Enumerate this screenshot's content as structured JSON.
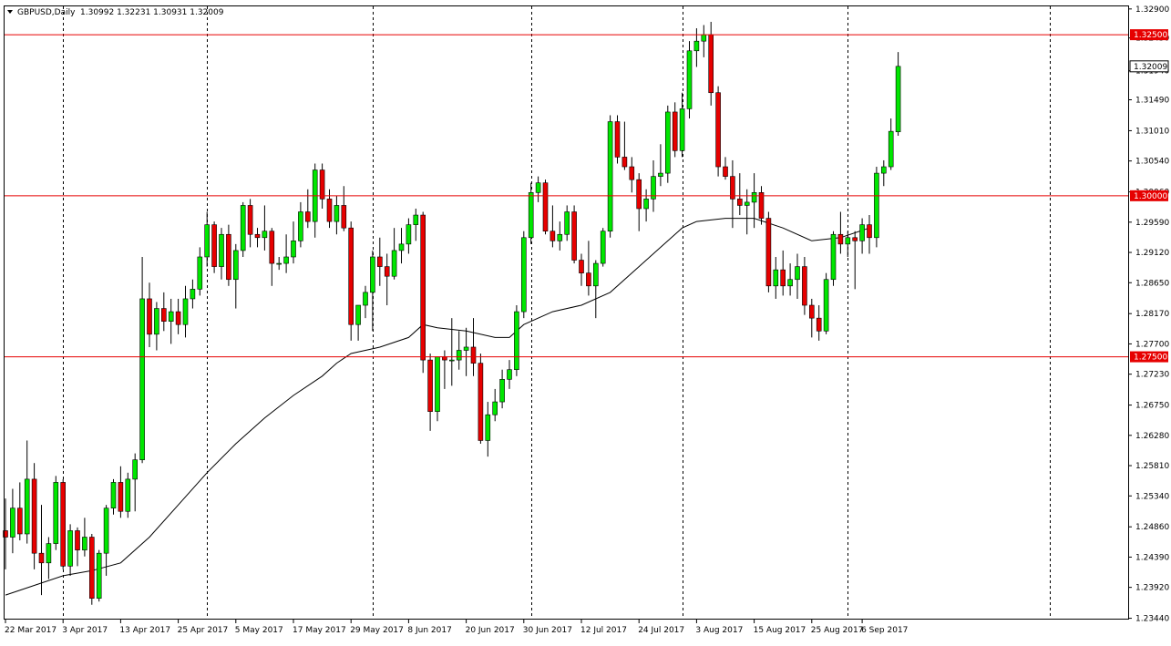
{
  "header": {
    "symbol_text": "GBPUSD,Daily",
    "ohlc_text": "1.30992 1.32231 1.30931 1.32009"
  },
  "colors": {
    "background": "#ffffff",
    "bull": "#00e600",
    "bear": "#e60000",
    "wick": "#000000",
    "level_line": "#e60000",
    "ma_line": "#000000",
    "grid_vertical": "#000000",
    "price_tag": "#e60000",
    "current_tag": "#ffffff"
  },
  "chart_data": {
    "type": "candlestick",
    "symbol": "GBPUSD",
    "timeframe": "Daily",
    "ylim": [
      1.2342,
      1.3294
    ],
    "y_ticks": [
      "1.32900",
      "1.32450",
      "1.31940",
      "1.31490",
      "1.31010",
      "1.30540",
      "1.30060",
      "1.29590",
      "1.29120",
      "1.28650",
      "1.28170",
      "1.27700",
      "1.27230",
      "1.26750",
      "1.26280",
      "1.25810",
      "1.25340",
      "1.24860",
      "1.24390",
      "1.23920",
      "1.23440"
    ],
    "x_labels": [
      {
        "bar": 0,
        "label": "22 Mar 2017"
      },
      {
        "bar": 8,
        "label": "3 Apr 2017"
      },
      {
        "bar": 16,
        "label": "13 Apr 2017"
      },
      {
        "bar": 24,
        "label": "25 Apr 2017"
      },
      {
        "bar": 32,
        "label": "5 May 2017"
      },
      {
        "bar": 40,
        "label": "17 May 2017"
      },
      {
        "bar": 48,
        "label": "29 May 2017"
      },
      {
        "bar": 56,
        "label": "8 Jun 2017"
      },
      {
        "bar": 64,
        "label": "20 Jun 2017"
      },
      {
        "bar": 72,
        "label": "30 Jun 2017"
      },
      {
        "bar": 80,
        "label": "12 Jul 2017"
      },
      {
        "bar": 88,
        "label": "24 Jul 2017"
      },
      {
        "bar": 96,
        "label": "3 Aug 2017"
      },
      {
        "bar": 104,
        "label": "15 Aug 2017"
      },
      {
        "bar": 112,
        "label": "25 Aug 2017"
      },
      {
        "bar": 119,
        "label": "6 Sep 2017"
      }
    ],
    "vertical_grid_bars": [
      8,
      28,
      51,
      73,
      94,
      117,
      145
    ],
    "levels": [
      {
        "value": 1.325,
        "label": "1.32500"
      },
      {
        "value": 1.3,
        "label": "1.30000"
      },
      {
        "value": 1.275,
        "label": "1.27500"
      }
    ],
    "current_price": {
      "value": 1.32009,
      "label": "1.32009"
    },
    "candles": [
      {
        "o": 1.248,
        "h": 1.253,
        "l": 1.242,
        "c": 1.247
      },
      {
        "o": 1.247,
        "h": 1.2545,
        "l": 1.2445,
        "c": 1.2515
      },
      {
        "o": 1.2515,
        "h": 1.2555,
        "l": 1.2465,
        "c": 1.2475
      },
      {
        "o": 1.2475,
        "h": 1.262,
        "l": 1.246,
        "c": 1.256
      },
      {
        "o": 1.256,
        "h": 1.2585,
        "l": 1.242,
        "c": 1.2445
      },
      {
        "o": 1.2445,
        "h": 1.252,
        "l": 1.238,
        "c": 1.243
      },
      {
        "o": 1.243,
        "h": 1.247,
        "l": 1.2405,
        "c": 1.246
      },
      {
        "o": 1.246,
        "h": 1.2565,
        "l": 1.245,
        "c": 1.2555
      },
      {
        "o": 1.2555,
        "h": 1.256,
        "l": 1.242,
        "c": 1.2425
      },
      {
        "o": 1.2425,
        "h": 1.249,
        "l": 1.241,
        "c": 1.248
      },
      {
        "o": 1.248,
        "h": 1.2485,
        "l": 1.2425,
        "c": 1.245
      },
      {
        "o": 1.245,
        "h": 1.25,
        "l": 1.244,
        "c": 1.247
      },
      {
        "o": 1.247,
        "h": 1.2475,
        "l": 1.2365,
        "c": 1.2375
      },
      {
        "o": 1.2375,
        "h": 1.245,
        "l": 1.237,
        "c": 1.2445
      },
      {
        "o": 1.2445,
        "h": 1.252,
        "l": 1.241,
        "c": 1.2515
      },
      {
        "o": 1.2515,
        "h": 1.256,
        "l": 1.2505,
        "c": 1.2555
      },
      {
        "o": 1.2555,
        "h": 1.258,
        "l": 1.25,
        "c": 1.251
      },
      {
        "o": 1.251,
        "h": 1.257,
        "l": 1.25,
        "c": 1.256
      },
      {
        "o": 1.256,
        "h": 1.26,
        "l": 1.251,
        "c": 1.259
      },
      {
        "o": 1.259,
        "h": 1.2905,
        "l": 1.2585,
        "c": 1.284
      },
      {
        "o": 1.284,
        "h": 1.2865,
        "l": 1.2765,
        "c": 1.2785
      },
      {
        "o": 1.2785,
        "h": 1.2835,
        "l": 1.276,
        "c": 1.2825
      },
      {
        "o": 1.2825,
        "h": 1.285,
        "l": 1.279,
        "c": 1.2805
      },
      {
        "o": 1.2805,
        "h": 1.284,
        "l": 1.277,
        "c": 1.282
      },
      {
        "o": 1.282,
        "h": 1.284,
        "l": 1.2785,
        "c": 1.28
      },
      {
        "o": 1.28,
        "h": 1.286,
        "l": 1.278,
        "c": 1.284
      },
      {
        "o": 1.284,
        "h": 1.287,
        "l": 1.2825,
        "c": 1.2855
      },
      {
        "o": 1.2855,
        "h": 1.292,
        "l": 1.2845,
        "c": 1.2905
      },
      {
        "o": 1.2905,
        "h": 1.2975,
        "l": 1.289,
        "c": 1.2955
      },
      {
        "o": 1.2955,
        "h": 1.296,
        "l": 1.288,
        "c": 1.289
      },
      {
        "o": 1.289,
        "h": 1.295,
        "l": 1.287,
        "c": 1.294
      },
      {
        "o": 1.294,
        "h": 1.2955,
        "l": 1.286,
        "c": 1.287
      },
      {
        "o": 1.287,
        "h": 1.2925,
        "l": 1.2825,
        "c": 1.2915
      },
      {
        "o": 1.2915,
        "h": 1.299,
        "l": 1.2905,
        "c": 1.2985
      },
      {
        "o": 1.2985,
        "h": 1.2995,
        "l": 1.292,
        "c": 1.294
      },
      {
        "o": 1.294,
        "h": 1.295,
        "l": 1.292,
        "c": 1.2935
      },
      {
        "o": 1.2935,
        "h": 1.2985,
        "l": 1.2915,
        "c": 1.2945
      },
      {
        "o": 1.2945,
        "h": 1.295,
        "l": 1.286,
        "c": 1.2895
      },
      {
        "o": 1.2895,
        "h": 1.2905,
        "l": 1.2885,
        "c": 1.2895
      },
      {
        "o": 1.2895,
        "h": 1.294,
        "l": 1.288,
        "c": 1.2905
      },
      {
        "o": 1.2905,
        "h": 1.296,
        "l": 1.2895,
        "c": 1.293
      },
      {
        "o": 1.293,
        "h": 1.299,
        "l": 1.292,
        "c": 1.2975
      },
      {
        "o": 1.2975,
        "h": 1.301,
        "l": 1.295,
        "c": 1.296
      },
      {
        "o": 1.296,
        "h": 1.305,
        "l": 1.2935,
        "c": 1.304
      },
      {
        "o": 1.304,
        "h": 1.305,
        "l": 1.298,
        "c": 1.2995
      },
      {
        "o": 1.2995,
        "h": 1.301,
        "l": 1.295,
        "c": 1.296
      },
      {
        "o": 1.296,
        "h": 1.3,
        "l": 1.294,
        "c": 1.2985
      },
      {
        "o": 1.2985,
        "h": 1.3015,
        "l": 1.2945,
        "c": 1.295
      },
      {
        "o": 1.295,
        "h": 1.296,
        "l": 1.2775,
        "c": 1.28
      },
      {
        "o": 1.28,
        "h": 1.283,
        "l": 1.2775,
        "c": 1.283
      },
      {
        "o": 1.283,
        "h": 1.286,
        "l": 1.281,
        "c": 1.285
      },
      {
        "o": 1.285,
        "h": 1.2915,
        "l": 1.279,
        "c": 1.2905
      },
      {
        "o": 1.2905,
        "h": 1.2935,
        "l": 1.286,
        "c": 1.289
      },
      {
        "o": 1.289,
        "h": 1.291,
        "l": 1.283,
        "c": 1.2875
      },
      {
        "o": 1.2875,
        "h": 1.295,
        "l": 1.287,
        "c": 1.2915
      },
      {
        "o": 1.2915,
        "h": 1.295,
        "l": 1.2895,
        "c": 1.2925
      },
      {
        "o": 1.2925,
        "h": 1.2965,
        "l": 1.291,
        "c": 1.2955
      },
      {
        "o": 1.2955,
        "h": 1.298,
        "l": 1.293,
        "c": 1.297
      },
      {
        "o": 1.297,
        "h": 1.2975,
        "l": 1.2725,
        "c": 1.2745
      },
      {
        "o": 1.2745,
        "h": 1.2755,
        "l": 1.2635,
        "c": 1.2665
      },
      {
        "o": 1.2665,
        "h": 1.275,
        "l": 1.265,
        "c": 1.275
      },
      {
        "o": 1.275,
        "h": 1.276,
        "l": 1.27,
        "c": 1.2745
      },
      {
        "o": 1.2745,
        "h": 1.281,
        "l": 1.2705,
        "c": 1.2745
      },
      {
        "o": 1.2745,
        "h": 1.279,
        "l": 1.273,
        "c": 1.276
      },
      {
        "o": 1.276,
        "h": 1.2795,
        "l": 1.272,
        "c": 1.2765
      },
      {
        "o": 1.2765,
        "h": 1.281,
        "l": 1.272,
        "c": 1.274
      },
      {
        "o": 1.274,
        "h": 1.2755,
        "l": 1.2615,
        "c": 1.262
      },
      {
        "o": 1.262,
        "h": 1.268,
        "l": 1.2595,
        "c": 1.266
      },
      {
        "o": 1.266,
        "h": 1.27,
        "l": 1.265,
        "c": 1.268
      },
      {
        "o": 1.268,
        "h": 1.273,
        "l": 1.267,
        "c": 1.2715
      },
      {
        "o": 1.2715,
        "h": 1.2745,
        "l": 1.27,
        "c": 1.273
      },
      {
        "o": 1.273,
        "h": 1.283,
        "l": 1.272,
        "c": 1.282
      },
      {
        "o": 1.282,
        "h": 1.2945,
        "l": 1.281,
        "c": 1.2935
      },
      {
        "o": 1.2935,
        "h": 1.302,
        "l": 1.2925,
        "c": 1.3005
      },
      {
        "o": 1.3005,
        "h": 1.303,
        "l": 1.299,
        "c": 1.302
      },
      {
        "o": 1.302,
        "h": 1.3025,
        "l": 1.294,
        "c": 1.2945
      },
      {
        "o": 1.2945,
        "h": 1.2985,
        "l": 1.292,
        "c": 1.293
      },
      {
        "o": 1.293,
        "h": 1.296,
        "l": 1.2915,
        "c": 1.294
      },
      {
        "o": 1.294,
        "h": 1.2985,
        "l": 1.293,
        "c": 1.2975
      },
      {
        "o": 1.2975,
        "h": 1.2985,
        "l": 1.2895,
        "c": 1.29
      },
      {
        "o": 1.29,
        "h": 1.291,
        "l": 1.286,
        "c": 1.288
      },
      {
        "o": 1.288,
        "h": 1.293,
        "l": 1.2845,
        "c": 1.286
      },
      {
        "o": 1.286,
        "h": 1.29,
        "l": 1.281,
        "c": 1.2895
      },
      {
        "o": 1.2895,
        "h": 1.295,
        "l": 1.289,
        "c": 1.2945
      },
      {
        "o": 1.2945,
        "h": 1.3125,
        "l": 1.2935,
        "c": 1.3115
      },
      {
        "o": 1.3115,
        "h": 1.3125,
        "l": 1.305,
        "c": 1.306
      },
      {
        "o": 1.306,
        "h": 1.3115,
        "l": 1.304,
        "c": 1.3045
      },
      {
        "o": 1.3045,
        "h": 1.306,
        "l": 1.3005,
        "c": 1.3025
      },
      {
        "o": 1.3025,
        "h": 1.3035,
        "l": 1.2945,
        "c": 1.298
      },
      {
        "o": 1.298,
        "h": 1.301,
        "l": 1.296,
        "c": 1.2995
      },
      {
        "o": 1.2995,
        "h": 1.3055,
        "l": 1.2975,
        "c": 1.303
      },
      {
        "o": 1.303,
        "h": 1.308,
        "l": 1.3015,
        "c": 1.3035
      },
      {
        "o": 1.3035,
        "h": 1.314,
        "l": 1.302,
        "c": 1.313
      },
      {
        "o": 1.313,
        "h": 1.3145,
        "l": 1.306,
        "c": 1.307
      },
      {
        "o": 1.307,
        "h": 1.316,
        "l": 1.306,
        "c": 1.3135
      },
      {
        "o": 1.3135,
        "h": 1.324,
        "l": 1.312,
        "c": 1.3225
      },
      {
        "o": 1.3225,
        "h": 1.326,
        "l": 1.32,
        "c": 1.324
      },
      {
        "o": 1.324,
        "h": 1.3265,
        "l": 1.3215,
        "c": 1.325
      },
      {
        "o": 1.325,
        "h": 1.327,
        "l": 1.314,
        "c": 1.316
      },
      {
        "o": 1.316,
        "h": 1.317,
        "l": 1.303,
        "c": 1.3045
      },
      {
        "o": 1.3045,
        "h": 1.306,
        "l": 1.3025,
        "c": 1.303
      },
      {
        "o": 1.303,
        "h": 1.3055,
        "l": 1.295,
        "c": 1.2995
      },
      {
        "o": 1.2995,
        "h": 1.3035,
        "l": 1.297,
        "c": 1.2985
      },
      {
        "o": 1.2985,
        "h": 1.301,
        "l": 1.294,
        "c": 1.299
      },
      {
        "o": 1.299,
        "h": 1.3035,
        "l": 1.295,
        "c": 1.3005
      },
      {
        "o": 1.3005,
        "h": 1.3015,
        "l": 1.2955,
        "c": 1.2965
      },
      {
        "o": 1.2965,
        "h": 1.2975,
        "l": 1.285,
        "c": 1.286
      },
      {
        "o": 1.286,
        "h": 1.2905,
        "l": 1.284,
        "c": 1.2885
      },
      {
        "o": 1.2885,
        "h": 1.2915,
        "l": 1.2845,
        "c": 1.286
      },
      {
        "o": 1.286,
        "h": 1.2895,
        "l": 1.2845,
        "c": 1.287
      },
      {
        "o": 1.287,
        "h": 1.291,
        "l": 1.284,
        "c": 1.289
      },
      {
        "o": 1.289,
        "h": 1.2905,
        "l": 1.2815,
        "c": 1.283
      },
      {
        "o": 1.283,
        "h": 1.284,
        "l": 1.278,
        "c": 1.281
      },
      {
        "o": 1.281,
        "h": 1.283,
        "l": 1.2775,
        "c": 1.279
      },
      {
        "o": 1.279,
        "h": 1.288,
        "l": 1.2785,
        "c": 1.287
      },
      {
        "o": 1.287,
        "h": 1.2945,
        "l": 1.286,
        "c": 1.294
      },
      {
        "o": 1.294,
        "h": 1.2975,
        "l": 1.291,
        "c": 1.2925
      },
      {
        "o": 1.2925,
        "h": 1.2945,
        "l": 1.2905,
        "c": 1.2935
      },
      {
        "o": 1.2935,
        "h": 1.2945,
        "l": 1.2855,
        "c": 1.293
      },
      {
        "o": 1.293,
        "h": 1.2965,
        "l": 1.291,
        "c": 1.2955
      },
      {
        "o": 1.2955,
        "h": 1.297,
        "l": 1.291,
        "c": 1.2935
      },
      {
        "o": 1.2935,
        "h": 1.3045,
        "l": 1.292,
        "c": 1.3035
      },
      {
        "o": 1.3035,
        "h": 1.3055,
        "l": 1.3015,
        "c": 1.3045
      },
      {
        "o": 1.3045,
        "h": 1.312,
        "l": 1.304,
        "c": 1.31
      },
      {
        "o": 1.30992,
        "h": 1.32231,
        "l": 1.30931,
        "c": 1.32009
      }
    ],
    "ma": [
      [
        0,
        1.238
      ],
      [
        4,
        1.2395
      ],
      [
        8,
        1.241
      ],
      [
        12,
        1.2418
      ],
      [
        16,
        1.243
      ],
      [
        20,
        1.247
      ],
      [
        24,
        1.252
      ],
      [
        28,
        1.257
      ],
      [
        32,
        1.2615
      ],
      [
        36,
        1.2655
      ],
      [
        40,
        1.269
      ],
      [
        44,
        1.272
      ],
      [
        46,
        1.274
      ],
      [
        48,
        1.2755
      ],
      [
        52,
        1.2765
      ],
      [
        56,
        1.278
      ],
      [
        58,
        1.28
      ],
      [
        60,
        1.2795
      ],
      [
        64,
        1.279
      ],
      [
        68,
        1.278
      ],
      [
        70,
        1.278
      ],
      [
        72,
        1.28
      ],
      [
        76,
        1.282
      ],
      [
        80,
        1.283
      ],
      [
        84,
        1.285
      ],
      [
        88,
        1.289
      ],
      [
        91,
        1.292
      ],
      [
        94,
        1.295
      ],
      [
        96,
        1.296
      ],
      [
        100,
        1.2965
      ],
      [
        104,
        1.2965
      ],
      [
        108,
        1.295
      ],
      [
        112,
        1.293
      ],
      [
        116,
        1.2935
      ],
      [
        120,
        1.295
      ]
    ]
  }
}
